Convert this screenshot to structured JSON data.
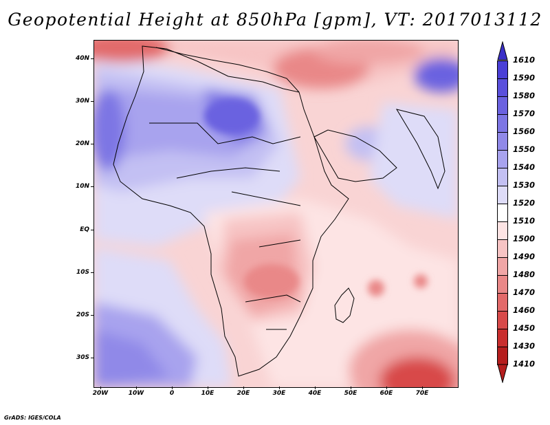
{
  "title": "Geopotential Height at 850hPa [gpm], VT: 2017013112",
  "credit": "GrADS: IGES/COLA",
  "map": {
    "variable": "Geopotential Height",
    "level": "850hPa",
    "units": "gpm",
    "valid_time": "2017013112",
    "lat_labels": [
      "40N",
      "30N",
      "20N",
      "10N",
      "EQ",
      "10S",
      "20S",
      "30S"
    ],
    "lon_labels": [
      "20W",
      "10W",
      "0",
      "10E",
      "20E",
      "30E",
      "40E",
      "50E",
      "60E",
      "70E"
    ]
  },
  "colorbar": {
    "levels": [
      "1610",
      "1590",
      "1580",
      "1570",
      "1560",
      "1550",
      "1540",
      "1530",
      "1520",
      "1510",
      "1500",
      "1490",
      "1480",
      "1470",
      "1460",
      "1450",
      "1430",
      "1410"
    ],
    "colors": [
      "#3a2fc8",
      "#4a3fd6",
      "#5a50dc",
      "#6b62e0",
      "#7d76e4",
      "#9089e8",
      "#a8a3ee",
      "#c3c0f3",
      "#dedcf8",
      "#ffffff",
      "#fde4e4",
      "#f7c4c4",
      "#f0a6a6",
      "#e98888",
      "#e26a6a",
      "#d84a4a",
      "#c92e2e",
      "#b51e1e"
    ],
    "bottom_color": "#b51e1e",
    "top_color": "#3a2fc8"
  }
}
